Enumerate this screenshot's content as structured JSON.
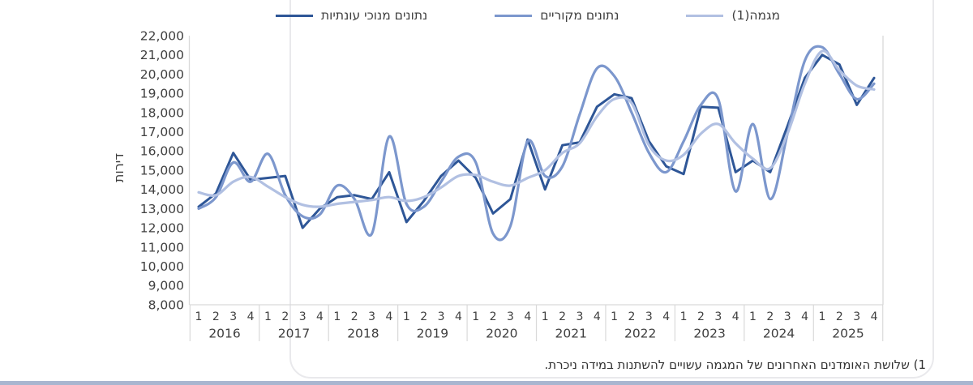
{
  "chart_data": {
    "type": "line",
    "ylabel": "דירות",
    "y_axis": {
      "min": 8000,
      "max": 22000,
      "step": 1000,
      "tick_labels": [
        "22,000",
        "21,000",
        "20,000",
        "19,000",
        "18,000",
        "17,000",
        "16,000",
        "15,000",
        "14,000",
        "13,000",
        "12,000",
        "11,000",
        "10,000",
        "9,000",
        "8,000"
      ]
    },
    "x_axis": {
      "quarter_labels": [
        "1",
        "2",
        "3",
        "4"
      ],
      "years": [
        "2016",
        "2017",
        "2018",
        "2019",
        "2020",
        "2021",
        "2022",
        "2023",
        "2024",
        "2025"
      ]
    },
    "legend_position": "top",
    "grid": false,
    "series": [
      {
        "name": "נתונים מנוכי עונתיות",
        "style": "angular",
        "color": "#2e5697",
        "values": [
          13100,
          13800,
          15900,
          14500,
          14600,
          14700,
          12000,
          13000,
          13600,
          13700,
          13500,
          14900,
          12300,
          13400,
          14700,
          15500,
          14600,
          12750,
          13500,
          16600,
          14000,
          16300,
          16450,
          18300,
          18950,
          18750,
          16500,
          15200,
          14800,
          18300,
          18250,
          14900,
          15500,
          14900,
          17300,
          19800,
          21000,
          20500,
          18400,
          19800
        ]
      },
      {
        "name": "נתונים מקוריים",
        "style": "smooth",
        "color": "#7c97cd",
        "values": [
          13000,
          13600,
          15400,
          14400,
          15850,
          13700,
          12600,
          12700,
          14200,
          13500,
          11700,
          16750,
          13250,
          13100,
          14400,
          15700,
          15400,
          11700,
          12100,
          16500,
          14700,
          15200,
          17900,
          20300,
          19900,
          18000,
          15900,
          14900,
          16500,
          18400,
          18700,
          13900,
          17400,
          13500,
          16900,
          20700,
          21400,
          20000,
          18700,
          19500
        ]
      },
      {
        "name": "מגמה(1)",
        "style": "smooth",
        "color": "#b1c0e2",
        "values": [
          13850,
          13700,
          14400,
          14650,
          14150,
          13600,
          13200,
          13100,
          13250,
          13350,
          13450,
          13600,
          13400,
          13600,
          14100,
          14700,
          14750,
          14400,
          14200,
          14600,
          15000,
          15900,
          16400,
          17800,
          18700,
          18500,
          16300,
          15500,
          15800,
          16900,
          17400,
          16400,
          15600,
          15100,
          16900,
          19500,
          21200,
          20200,
          19400,
          19200
        ]
      }
    ],
    "footnote": "1) שלושת האומדנים האחרונים של המגמה עשויים להשתנות במידה ניכרת.",
    "colors": {
      "axis_line": "#d9d9d9",
      "tick_text": "#3f3f3f",
      "bottom_strip": "#a9b6d0"
    }
  }
}
